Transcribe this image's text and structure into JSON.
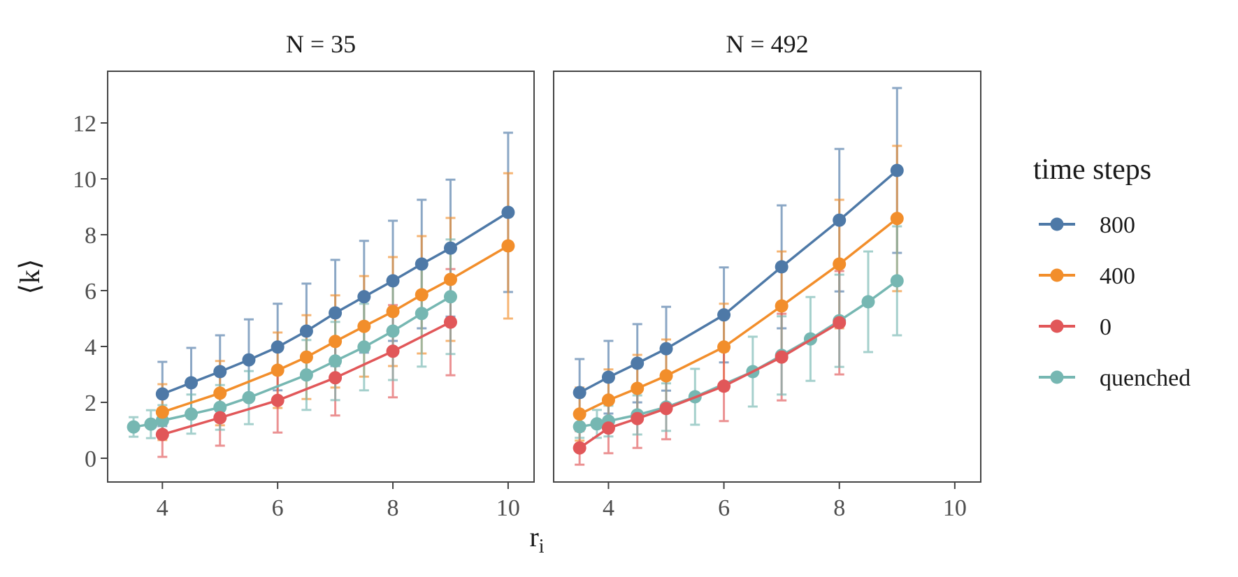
{
  "chart_data": {
    "type": "line",
    "xlabel": "r",
    "xlabel_sub": "i",
    "ylabel": "⟨k⟩",
    "xlim": [
      3.05,
      10.45
    ],
    "ylim": [
      -0.85,
      13.85
    ],
    "xticks": [
      4,
      6,
      8,
      10
    ],
    "yticks": [
      0,
      2,
      4,
      6,
      8,
      10,
      12
    ],
    "legend": {
      "title": "time steps",
      "position": "right",
      "entries": [
        {
          "name": "800",
          "color": "#4e79a7"
        },
        {
          "name": "400",
          "color": "#f28e2b"
        },
        {
          "name": "0",
          "color": "#e15759"
        },
        {
          "name": "quenched",
          "color": "#76b7b2"
        }
      ]
    },
    "panels": [
      {
        "title": "N = 35",
        "series": [
          {
            "name": "800",
            "color": "#4e79a7",
            "x": [
              4,
              4.5,
              5,
              5.5,
              6,
              6.5,
              7,
              7.5,
              8,
              8.5,
              9,
              10
            ],
            "y": [
              2.3,
              2.7,
              3.1,
              3.52,
              3.98,
              4.55,
              5.2,
              5.78,
              6.35,
              6.95,
              7.52,
              8.8
            ],
            "err": [
              1.15,
              1.25,
              1.3,
              1.45,
              1.55,
              1.7,
              1.9,
              2.0,
              2.15,
              2.3,
              2.45,
              2.85
            ]
          },
          {
            "name": "400",
            "color": "#f28e2b",
            "x": [
              4,
              5,
              6,
              6.5,
              7,
              7.5,
              8,
              8.5,
              9,
              10
            ],
            "y": [
              1.65,
              2.33,
              3.15,
              3.62,
              4.18,
              4.72,
              5.25,
              5.85,
              6.4,
              7.6
            ],
            "err": [
              1.0,
              1.15,
              1.35,
              1.5,
              1.65,
              1.8,
              1.95,
              2.1,
              2.2,
              2.6
            ]
          },
          {
            "name": "0",
            "color": "#e15759",
            "x": [
              4,
              5,
              6,
              7,
              8,
              9
            ],
            "y": [
              0.85,
              1.45,
              2.07,
              2.88,
              3.83,
              4.87
            ],
            "err": [
              0.8,
              1.0,
              1.15,
              1.35,
              1.65,
              1.9
            ]
          },
          {
            "name": "quenched",
            "color": "#76b7b2",
            "x": [
              3.5,
              3.8,
              4,
              4.5,
              5,
              5.5,
              6.5,
              7,
              7.5,
              8,
              8.5,
              9
            ],
            "y": [
              1.12,
              1.22,
              1.35,
              1.58,
              1.82,
              2.17,
              2.98,
              3.48,
              3.98,
              4.55,
              5.18,
              5.78
            ],
            "err": [
              0.35,
              0.5,
              0.55,
              0.7,
              0.8,
              0.95,
              1.25,
              1.4,
              1.55,
              1.75,
              1.9,
              2.05
            ]
          }
        ]
      },
      {
        "title": "N = 492",
        "series": [
          {
            "name": "800",
            "color": "#4e79a7",
            "x": [
              3.5,
              4,
              4.5,
              5,
              6,
              7,
              8,
              9
            ],
            "y": [
              2.35,
              2.9,
              3.4,
              3.92,
              5.13,
              6.85,
              8.52,
              10.3
            ],
            "err": [
              1.2,
              1.3,
              1.4,
              1.5,
              1.7,
              2.2,
              2.55,
              2.95
            ]
          },
          {
            "name": "400",
            "color": "#f28e2b",
            "x": [
              3.5,
              4,
              4.5,
              5,
              6,
              7,
              8,
              9
            ],
            "y": [
              1.58,
              2.08,
              2.5,
              2.95,
              3.98,
              5.45,
              6.95,
              8.58
            ],
            "err": [
              0.95,
              1.1,
              1.2,
              1.3,
              1.55,
              1.95,
              2.3,
              2.6
            ]
          },
          {
            "name": "0",
            "color": "#e15759",
            "x": [
              3.5,
              4,
              4.5,
              5,
              6,
              7,
              8
            ],
            "y": [
              0.37,
              1.08,
              1.42,
              1.78,
              2.58,
              3.62,
              4.85
            ],
            "err": [
              0.6,
              0.9,
              1.05,
              1.1,
              1.25,
              1.55,
              1.85
            ]
          },
          {
            "name": "quenched",
            "color": "#76b7b2",
            "x": [
              3.5,
              3.8,
              4,
              4.5,
              5,
              5.5,
              6.5,
              7,
              7.5,
              8,
              8.5,
              9
            ],
            "y": [
              1.13,
              1.23,
              1.33,
              1.55,
              1.83,
              2.2,
              3.1,
              3.68,
              4.27,
              4.92,
              5.6,
              6.35
            ],
            "err": [
              0.4,
              0.5,
              0.55,
              0.7,
              0.85,
              1.0,
              1.25,
              1.4,
              1.5,
              1.65,
              1.8,
              1.95
            ]
          }
        ]
      }
    ]
  }
}
